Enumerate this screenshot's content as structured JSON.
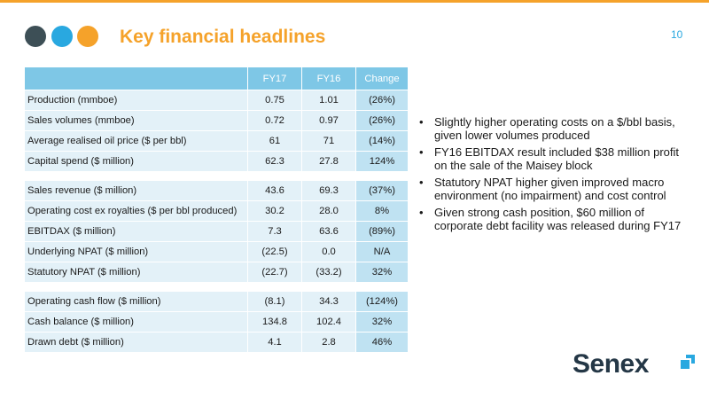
{
  "header": {
    "title": "Key financial headlines",
    "page_number": "10",
    "dot_colors": [
      "#3d4f56",
      "#29a8e0",
      "#f5a22a"
    ]
  },
  "table": {
    "columns": [
      "",
      "FY17",
      "FY16",
      "Change"
    ],
    "groups": [
      [
        {
          "label": "Production (mmboe)",
          "fy17": "0.75",
          "fy16": "1.01",
          "change": "(26%)"
        },
        {
          "label": "Sales volumes (mmboe)",
          "fy17": "0.72",
          "fy16": "0.97",
          "change": "(26%)"
        },
        {
          "label": "Average realised oil price ($ per bbl)",
          "fy17": "61",
          "fy16": "71",
          "change": "(14%)"
        },
        {
          "label": "Capital spend ($ million)",
          "fy17": "62.3",
          "fy16": "27.8",
          "change": "124%"
        }
      ],
      [
        {
          "label": "Sales revenue ($ million)",
          "fy17": "43.6",
          "fy16": "69.3",
          "change": "(37%)"
        },
        {
          "label": "Operating cost ex royalties ($ per bbl produced)",
          "fy17": "30.2",
          "fy16": "28.0",
          "change": "8%"
        },
        {
          "label": "EBITDAX ($ million)",
          "fy17": "7.3",
          "fy16": "63.6",
          "change": "(89%)"
        },
        {
          "label": "Underlying NPAT ($ million)",
          "fy17": "(22.5)",
          "fy16": "0.0",
          "change": "N/A"
        },
        {
          "label": "Statutory NPAT ($ million)",
          "fy17": "(22.7)",
          "fy16": "(33.2)",
          "change": "32%"
        }
      ],
      [
        {
          "label": "Operating cash flow ($ million)",
          "fy17": "(8.1)",
          "fy16": "34.3",
          "change": "(124%)"
        },
        {
          "label": "Cash balance ($ million)",
          "fy17": "134.8",
          "fy16": "102.4",
          "change": "32%"
        },
        {
          "label": "Drawn debt ($ million)",
          "fy17": "4.1",
          "fy16": "2.8",
          "change": "46%"
        }
      ]
    ]
  },
  "bullets": [
    "Slightly higher operating costs on a $/bbl basis, given lower volumes produced",
    "FY16 EBITDAX result included $38 million profit on the sale of the Maisey block",
    "Statutory NPAT higher given improved macro environment (no impairment) and cost control",
    "Given strong cash position, $60 million of corporate debt facility was released during FY17"
  ],
  "logo": {
    "text": "Senex",
    "text_color": "#243746",
    "mark_color": "#29a8e0"
  },
  "colors": {
    "accent_orange": "#f5a22a",
    "header_cell": "#7ec7e6",
    "row_cell": "#e3f1f8",
    "change_cell": "#bfe2f2"
  }
}
